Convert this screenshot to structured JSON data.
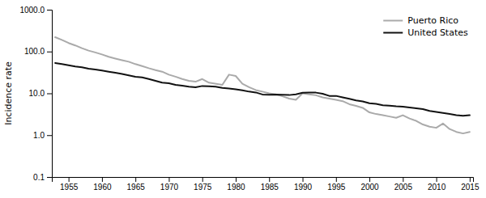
{
  "chart_data": {
    "type": "line",
    "ylabel": "Incidence rate",
    "log": "y",
    "grid": false,
    "legend": "upper right",
    "xlim": [
      1952.5,
      2015.5
    ],
    "xticks": [
      1955,
      1960,
      1965,
      1970,
      1975,
      1980,
      1985,
      1990,
      1995,
      2000,
      2005,
      2010,
      2015
    ],
    "ylim": [
      0.1,
      1000.0
    ],
    "yticks": [
      0.1,
      {
        "value": 1.0,
        "label": "1.0"
      },
      {
        "value": 10.0,
        "label": "10.0"
      },
      {
        "value": 100.0,
        "label": "100.0"
      },
      {
        "value": 1000.0,
        "label": "1000.0"
      }
    ],
    "series": [
      {
        "name": "Puerto Rico",
        "color": "#aaaaaa",
        "x": [
          1953,
          1954,
          1955,
          1956,
          1957,
          1958,
          1959,
          1960,
          1961,
          1962,
          1963,
          1964,
          1965,
          1966,
          1967,
          1968,
          1969,
          1970,
          1971,
          1972,
          1973,
          1974,
          1975,
          1976,
          1978,
          1979,
          1980,
          1981,
          1982,
          1983,
          1984,
          1985,
          1986,
          1987,
          1988,
          1989,
          1990,
          1991,
          1992,
          1993,
          1994,
          1995,
          1996,
          1997,
          1998,
          1999,
          2000,
          2001,
          2002,
          2003,
          2004,
          2005,
          2006,
          2007,
          2008,
          2009,
          2010,
          2011,
          2012,
          2013,
          2014,
          2015
        ],
        "values": [
          220,
          190,
          160,
          140,
          120,
          105,
          95,
          85,
          75,
          68,
          62,
          57,
          50,
          45,
          40,
          36,
          33,
          28,
          25,
          22,
          20,
          19,
          22,
          18,
          16,
          28,
          26,
          17,
          14,
          12,
          11,
          10,
          9.5,
          8.5,
          7.5,
          7.0,
          10.0,
          9.5,
          9.0,
          8.0,
          7.5,
          7.0,
          6.5,
          5.5,
          5.0,
          4.5,
          3.5,
          3.2,
          3.0,
          2.8,
          2.6,
          3.0,
          2.5,
          2.2,
          1.8,
          1.6,
          1.5,
          1.9,
          1.4,
          1.2,
          1.1,
          1.2
        ]
      },
      {
        "name": "United States",
        "color": "#111111",
        "x": [
          1953,
          1954,
          1955,
          1956,
          1957,
          1958,
          1959,
          1960,
          1961,
          1962,
          1963,
          1964,
          1965,
          1966,
          1967,
          1968,
          1969,
          1970,
          1971,
          1972,
          1973,
          1974,
          1975,
          1976,
          1977,
          1978,
          1979,
          1980,
          1981,
          1982,
          1983,
          1984,
          1985,
          1986,
          1987,
          1988,
          1989,
          1990,
          1991,
          1992,
          1993,
          1994,
          1995,
          1996,
          1997,
          1998,
          1999,
          2000,
          2001,
          2002,
          2003,
          2004,
          2005,
          2006,
          2007,
          2008,
          2009,
          2010,
          2011,
          2012,
          2013,
          2014,
          2015
        ],
        "values": [
          53,
          50,
          47,
          44,
          42,
          39,
          37,
          35,
          33,
          31,
          29,
          27,
          25,
          24,
          22,
          20,
          18,
          17.5,
          16,
          15.2,
          14.5,
          14.0,
          15.0,
          14.8,
          14.5,
          13.5,
          13.0,
          12.5,
          11.8,
          11.0,
          10.5,
          9.4,
          9.3,
          9.4,
          9.3,
          9.1,
          9.5,
          10.3,
          10.5,
          10.4,
          9.8,
          8.7,
          8.7,
          8.0,
          7.4,
          6.8,
          6.4,
          5.8,
          5.6,
          5.2,
          5.1,
          4.9,
          4.8,
          4.6,
          4.4,
          4.2,
          3.8,
          3.6,
          3.4,
          3.2,
          3.0,
          2.9,
          3.0
        ]
      }
    ]
  }
}
